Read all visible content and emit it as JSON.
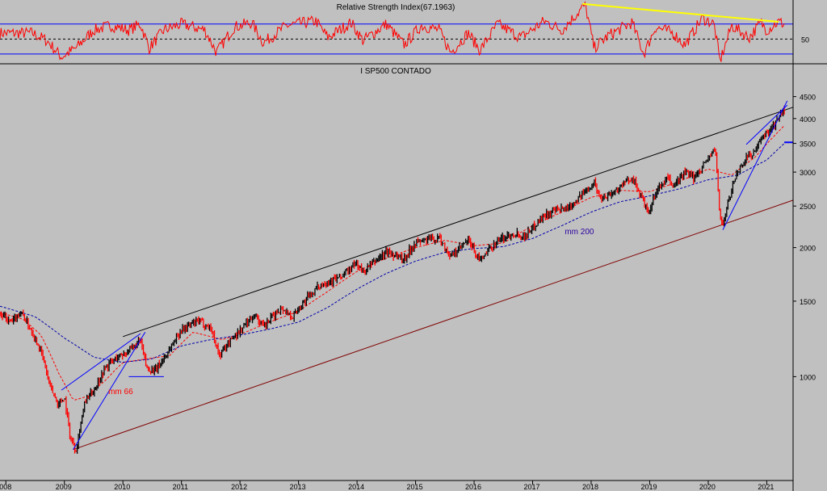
{
  "chart_data": [
    {
      "type": "line",
      "title": "Relative Strength Index(67.1963)",
      "y_ticks": [
        50
      ],
      "reference_levels": [
        70,
        50,
        30
      ],
      "ylim": [
        18,
        100
      ],
      "colors": {
        "line": "#ff0000",
        "levels": "#0000ff",
        "trend": "#ffff00",
        "background": "#c0c0c0"
      },
      "trendline": [
        {
          "x": 2017.85,
          "y": 97
        },
        {
          "x": 2021.2,
          "y": 73
        }
      ],
      "anchors": [
        {
          "x": 2008.45,
          "y": 58
        },
        {
          "x": 2008.7,
          "y": 48
        },
        {
          "x": 2008.95,
          "y": 26
        },
        {
          "x": 2009.2,
          "y": 38
        },
        {
          "x": 2009.5,
          "y": 62
        },
        {
          "x": 2009.8,
          "y": 68
        },
        {
          "x": 2010.1,
          "y": 62
        },
        {
          "x": 2010.3,
          "y": 70
        },
        {
          "x": 2010.45,
          "y": 38
        },
        {
          "x": 2010.7,
          "y": 62
        },
        {
          "x": 2011.0,
          "y": 70
        },
        {
          "x": 2011.4,
          "y": 62
        },
        {
          "x": 2011.6,
          "y": 32
        },
        {
          "x": 2011.9,
          "y": 66
        },
        {
          "x": 2012.2,
          "y": 72
        },
        {
          "x": 2012.4,
          "y": 45
        },
        {
          "x": 2012.8,
          "y": 68
        },
        {
          "x": 2013.3,
          "y": 74
        },
        {
          "x": 2013.5,
          "y": 52
        },
        {
          "x": 2013.9,
          "y": 72
        },
        {
          "x": 2014.1,
          "y": 48
        },
        {
          "x": 2014.5,
          "y": 70
        },
        {
          "x": 2014.8,
          "y": 42
        },
        {
          "x": 2015.1,
          "y": 68
        },
        {
          "x": 2015.4,
          "y": 62
        },
        {
          "x": 2015.6,
          "y": 32
        },
        {
          "x": 2015.9,
          "y": 58
        },
        {
          "x": 2016.1,
          "y": 35
        },
        {
          "x": 2016.4,
          "y": 70
        },
        {
          "x": 2016.8,
          "y": 52
        },
        {
          "x": 2017.2,
          "y": 74
        },
        {
          "x": 2017.5,
          "y": 62
        },
        {
          "x": 2017.9,
          "y": 96
        },
        {
          "x": 2018.05,
          "y": 38
        },
        {
          "x": 2018.3,
          "y": 55
        },
        {
          "x": 2018.7,
          "y": 72
        },
        {
          "x": 2018.9,
          "y": 30
        },
        {
          "x": 2019.1,
          "y": 66
        },
        {
          "x": 2019.4,
          "y": 58
        },
        {
          "x": 2019.6,
          "y": 42
        },
        {
          "x": 2019.9,
          "y": 78
        },
        {
          "x": 2020.1,
          "y": 70
        },
        {
          "x": 2020.2,
          "y": 20
        },
        {
          "x": 2020.4,
          "y": 68
        },
        {
          "x": 2020.7,
          "y": 52
        },
        {
          "x": 2020.9,
          "y": 72
        },
        {
          "x": 2021.0,
          "y": 62
        },
        {
          "x": 2021.2,
          "y": 73
        },
        {
          "x": 2021.3,
          "y": 70
        }
      ]
    },
    {
      "type": "line",
      "title": "I SP500 CONTADO",
      "scale": "log",
      "ylim": [
        580,
        4900
      ],
      "y_ticks": [
        1000,
        1500,
        2000,
        2500,
        3000,
        3500,
        4000,
        4500
      ],
      "x_labels": [
        {
          "x": 2008,
          "label": "008"
        },
        {
          "x": 2009,
          "label": "2009"
        },
        {
          "x": 2010,
          "label": "2010"
        },
        {
          "x": 2011,
          "label": "2011"
        },
        {
          "x": 2012,
          "label": "2012"
        },
        {
          "x": 2013,
          "label": "2013"
        },
        {
          "x": 2014,
          "label": "2014"
        },
        {
          "x": 2015,
          "label": "2015"
        },
        {
          "x": 2016,
          "label": "2016"
        },
        {
          "x": 2017,
          "label": "2017"
        },
        {
          "x": 2018,
          "label": "2018"
        },
        {
          "x": 2019,
          "label": "2019"
        },
        {
          "x": 2020,
          "label": "2020"
        },
        {
          "x": 2021,
          "label": "2021"
        }
      ],
      "xlim": [
        2007.9,
        2021.45
      ],
      "colors": {
        "up": "#000000",
        "down": "#ff0000",
        "ma_fast": "#ff0000",
        "ma_slow": "#0000aa",
        "channel_top": "#000000",
        "channel_bottom": "#800000",
        "trend": "#0000ff",
        "level": "#0000ff"
      },
      "anchors": [
        {
          "x": 2007.9,
          "y": 1400
        },
        {
          "x": 2008.1,
          "y": 1330
        },
        {
          "x": 2008.25,
          "y": 1420
        },
        {
          "x": 2008.45,
          "y": 1270
        },
        {
          "x": 2008.6,
          "y": 1150
        },
        {
          "x": 2008.75,
          "y": 950
        },
        {
          "x": 2008.9,
          "y": 860
        },
        {
          "x": 2009.0,
          "y": 900
        },
        {
          "x": 2009.1,
          "y": 720
        },
        {
          "x": 2009.2,
          "y": 676
        },
        {
          "x": 2009.35,
          "y": 870
        },
        {
          "x": 2009.5,
          "y": 930
        },
        {
          "x": 2009.7,
          "y": 1050
        },
        {
          "x": 2009.9,
          "y": 1110
        },
        {
          "x": 2010.15,
          "y": 1160
        },
        {
          "x": 2010.3,
          "y": 1210
        },
        {
          "x": 2010.4,
          "y": 1050
        },
        {
          "x": 2010.55,
          "y": 1030
        },
        {
          "x": 2010.75,
          "y": 1130
        },
        {
          "x": 2011.0,
          "y": 1290
        },
        {
          "x": 2011.3,
          "y": 1350
        },
        {
          "x": 2011.5,
          "y": 1300
        },
        {
          "x": 2011.65,
          "y": 1120
        },
        {
          "x": 2011.8,
          "y": 1200
        },
        {
          "x": 2012.0,
          "y": 1280
        },
        {
          "x": 2012.25,
          "y": 1400
        },
        {
          "x": 2012.4,
          "y": 1300
        },
        {
          "x": 2012.7,
          "y": 1450
        },
        {
          "x": 2012.9,
          "y": 1380
        },
        {
          "x": 2013.1,
          "y": 1500
        },
        {
          "x": 2013.4,
          "y": 1650
        },
        {
          "x": 2013.7,
          "y": 1700
        },
        {
          "x": 2014.0,
          "y": 1840
        },
        {
          "x": 2014.1,
          "y": 1750
        },
        {
          "x": 2014.5,
          "y": 1960
        },
        {
          "x": 2014.8,
          "y": 1880
        },
        {
          "x": 2015.0,
          "y": 2060
        },
        {
          "x": 2015.4,
          "y": 2110
        },
        {
          "x": 2015.6,
          "y": 1900
        },
        {
          "x": 2015.9,
          "y": 2080
        },
        {
          "x": 2016.1,
          "y": 1860
        },
        {
          "x": 2016.4,
          "y": 2080
        },
        {
          "x": 2016.7,
          "y": 2170
        },
        {
          "x": 2016.85,
          "y": 2120
        },
        {
          "x": 2017.2,
          "y": 2380
        },
        {
          "x": 2017.6,
          "y": 2480
        },
        {
          "x": 2017.9,
          "y": 2700
        },
        {
          "x": 2018.05,
          "y": 2850
        },
        {
          "x": 2018.15,
          "y": 2600
        },
        {
          "x": 2018.4,
          "y": 2700
        },
        {
          "x": 2018.7,
          "y": 2920
        },
        {
          "x": 2018.85,
          "y": 2640
        },
        {
          "x": 2018.98,
          "y": 2380
        },
        {
          "x": 2019.1,
          "y": 2680
        },
        {
          "x": 2019.3,
          "y": 2900
        },
        {
          "x": 2019.4,
          "y": 2780
        },
        {
          "x": 2019.6,
          "y": 3000
        },
        {
          "x": 2019.75,
          "y": 2900
        },
        {
          "x": 2020.05,
          "y": 3300
        },
        {
          "x": 2020.12,
          "y": 3380
        },
        {
          "x": 2020.2,
          "y": 2350
        },
        {
          "x": 2020.25,
          "y": 2250
        },
        {
          "x": 2020.45,
          "y": 2900
        },
        {
          "x": 2020.65,
          "y": 3250
        },
        {
          "x": 2020.8,
          "y": 3350
        },
        {
          "x": 2020.95,
          "y": 3650
        },
        {
          "x": 2021.15,
          "y": 3900
        },
        {
          "x": 2021.3,
          "y": 4200
        }
      ],
      "ma_fast": {
        "label": "mm 66",
        "anchors": [
          {
            "x": 2007.9,
            "y": 1410
          },
          {
            "x": 2008.3,
            "y": 1360
          },
          {
            "x": 2008.6,
            "y": 1250
          },
          {
            "x": 2008.9,
            "y": 1020
          },
          {
            "x": 2009.15,
            "y": 880
          },
          {
            "x": 2009.4,
            "y": 900
          },
          {
            "x": 2009.7,
            "y": 980
          },
          {
            "x": 2010.0,
            "y": 1080
          },
          {
            "x": 2010.4,
            "y": 1100
          },
          {
            "x": 2010.8,
            "y": 1120
          },
          {
            "x": 2011.2,
            "y": 1270
          },
          {
            "x": 2011.7,
            "y": 1220
          },
          {
            "x": 2012.1,
            "y": 1270
          },
          {
            "x": 2012.5,
            "y": 1340
          },
          {
            "x": 2013.0,
            "y": 1420
          },
          {
            "x": 2013.5,
            "y": 1580
          },
          {
            "x": 2014.0,
            "y": 1760
          },
          {
            "x": 2014.5,
            "y": 1890
          },
          {
            "x": 2015.0,
            "y": 2000
          },
          {
            "x": 2015.5,
            "y": 2080
          },
          {
            "x": 2016.0,
            "y": 2020
          },
          {
            "x": 2016.5,
            "y": 2050
          },
          {
            "x": 2017.0,
            "y": 2250
          },
          {
            "x": 2017.5,
            "y": 2420
          },
          {
            "x": 2018.0,
            "y": 2620
          },
          {
            "x": 2018.5,
            "y": 2720
          },
          {
            "x": 2019.0,
            "y": 2700
          },
          {
            "x": 2019.5,
            "y": 2850
          },
          {
            "x": 2020.0,
            "y": 3050
          },
          {
            "x": 2020.4,
            "y": 2950
          },
          {
            "x": 2020.8,
            "y": 3250
          },
          {
            "x": 2021.3,
            "y": 3850
          }
        ]
      },
      "ma_slow": {
        "label": "mm 200",
        "anchors": [
          {
            "x": 2007.9,
            "y": 1460
          },
          {
            "x": 2008.5,
            "y": 1380
          },
          {
            "x": 2009.0,
            "y": 1230
          },
          {
            "x": 2009.5,
            "y": 1110
          },
          {
            "x": 2010.0,
            "y": 1080
          },
          {
            "x": 2010.5,
            "y": 1100
          },
          {
            "x": 2011.0,
            "y": 1180
          },
          {
            "x": 2011.5,
            "y": 1220
          },
          {
            "x": 2012.0,
            "y": 1250
          },
          {
            "x": 2012.5,
            "y": 1290
          },
          {
            "x": 2013.0,
            "y": 1340
          },
          {
            "x": 2013.5,
            "y": 1450
          },
          {
            "x": 2014.0,
            "y": 1600
          },
          {
            "x": 2014.5,
            "y": 1740
          },
          {
            "x": 2015.0,
            "y": 1860
          },
          {
            "x": 2015.5,
            "y": 1950
          },
          {
            "x": 2016.0,
            "y": 1990
          },
          {
            "x": 2016.5,
            "y": 2010
          },
          {
            "x": 2017.0,
            "y": 2100
          },
          {
            "x": 2017.5,
            "y": 2250
          },
          {
            "x": 2018.0,
            "y": 2420
          },
          {
            "x": 2018.5,
            "y": 2560
          },
          {
            "x": 2019.0,
            "y": 2640
          },
          {
            "x": 2019.5,
            "y": 2740
          },
          {
            "x": 2020.0,
            "y": 2880
          },
          {
            "x": 2020.5,
            "y": 2950
          },
          {
            "x": 2021.0,
            "y": 3200
          },
          {
            "x": 2021.3,
            "y": 3500
          }
        ]
      },
      "channel_top": [
        {
          "x": 2010.0,
          "y": 1240
        },
        {
          "x": 2021.45,
          "y": 4250
        }
      ],
      "channel_bottom": [
        {
          "x": 2009.15,
          "y": 676
        },
        {
          "x": 2021.45,
          "y": 2580
        }
      ],
      "trendlines": [
        {
          "points": [
            {
              "x": 2009.15,
              "y": 676
            },
            {
              "x": 2010.38,
              "y": 1270
            }
          ]
        },
        {
          "points": [
            {
              "x": 2008.95,
              "y": 930
            },
            {
              "x": 2010.3,
              "y": 1260
            }
          ]
        },
        {
          "points": [
            {
              "x": 2020.25,
              "y": 2200
            },
            {
              "x": 2021.35,
              "y": 4400
            }
          ]
        },
        {
          "points": [
            {
              "x": 2020.65,
              "y": 3480
            },
            {
              "x": 2021.35,
              "y": 4300
            }
          ]
        }
      ],
      "level_lines": [
        {
          "x1": 2010.1,
          "x2": 2010.7,
          "y": 1000
        },
        {
          "x1": 2021.3,
          "x2": 2021.45,
          "y": 3520
        }
      ]
    }
  ]
}
